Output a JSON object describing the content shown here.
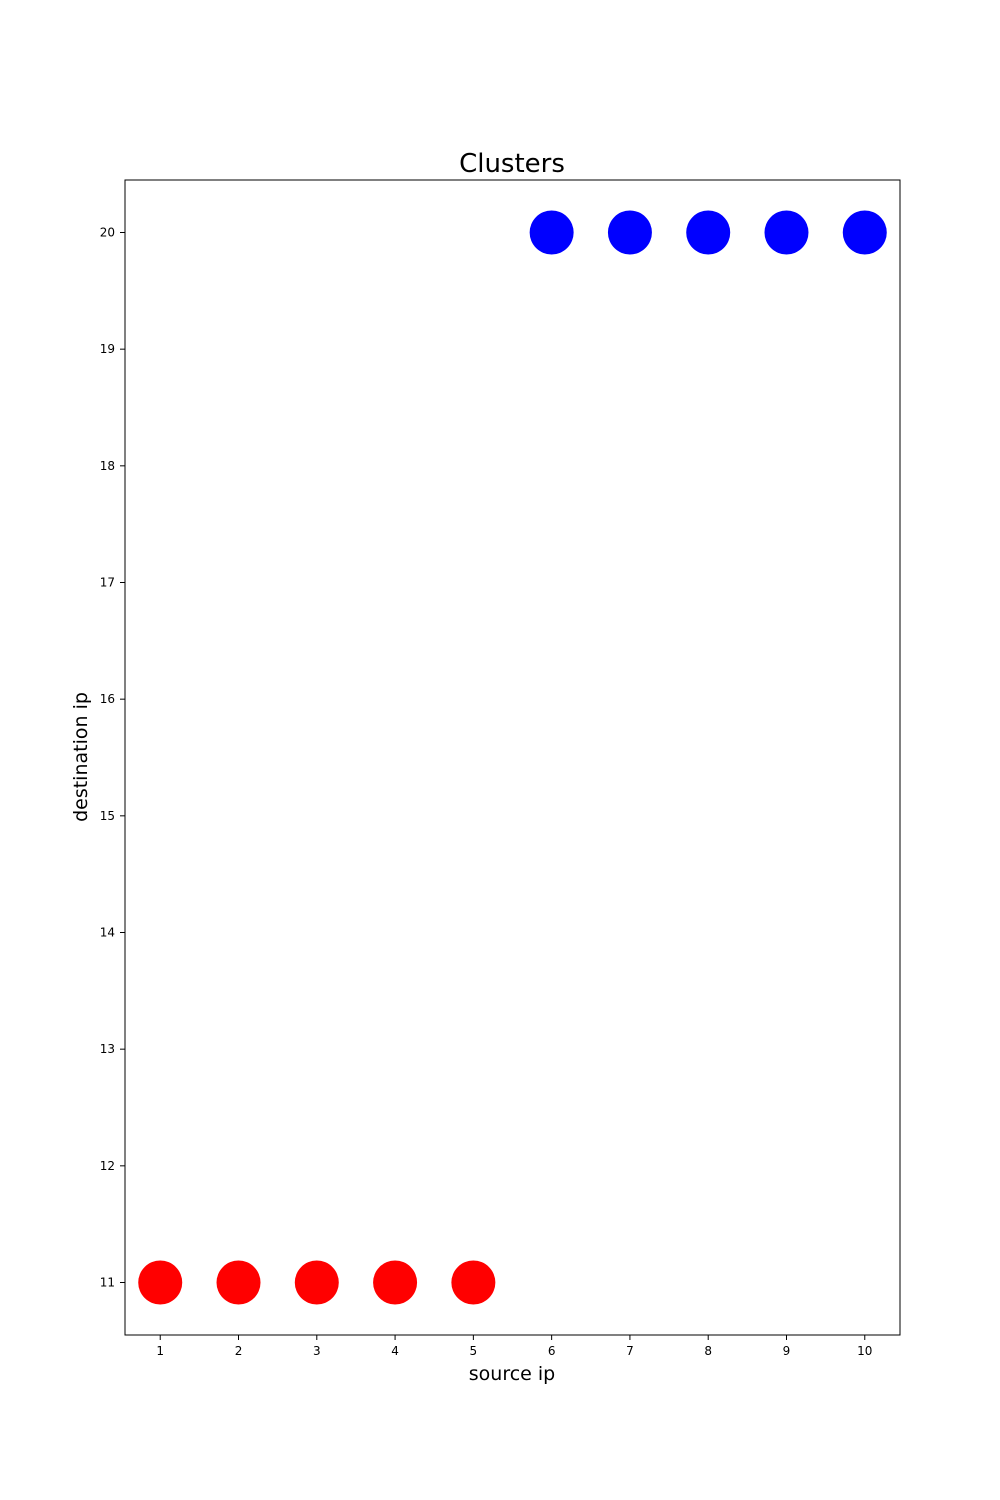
{
  "chart_data": {
    "type": "scatter",
    "title": "Clusters",
    "xlabel": "source ip",
    "ylabel": "destination ip",
    "xlim": [
      0.55,
      10.45
    ],
    "ylim": [
      10.55,
      20.45
    ],
    "xticks": [
      "1",
      "2",
      "3",
      "4",
      "5",
      "6",
      "7",
      "8",
      "9",
      "10"
    ],
    "yticks": [
      "11",
      "12",
      "13",
      "14",
      "15",
      "16",
      "17",
      "18",
      "19",
      "20"
    ],
    "grid": false,
    "legend": "none",
    "series": [
      {
        "color": "#ff0000",
        "points": [
          {
            "x": 1,
            "y": 11
          },
          {
            "x": 2,
            "y": 11
          },
          {
            "x": 3,
            "y": 11
          },
          {
            "x": 4,
            "y": 11
          },
          {
            "x": 5,
            "y": 11
          }
        ]
      },
      {
        "color": "#0000ff",
        "points": [
          {
            "x": 6,
            "y": 20
          },
          {
            "x": 7,
            "y": 20
          },
          {
            "x": 8,
            "y": 20
          },
          {
            "x": 9,
            "y": 20
          },
          {
            "x": 10,
            "y": 20
          }
        ]
      }
    ]
  }
}
